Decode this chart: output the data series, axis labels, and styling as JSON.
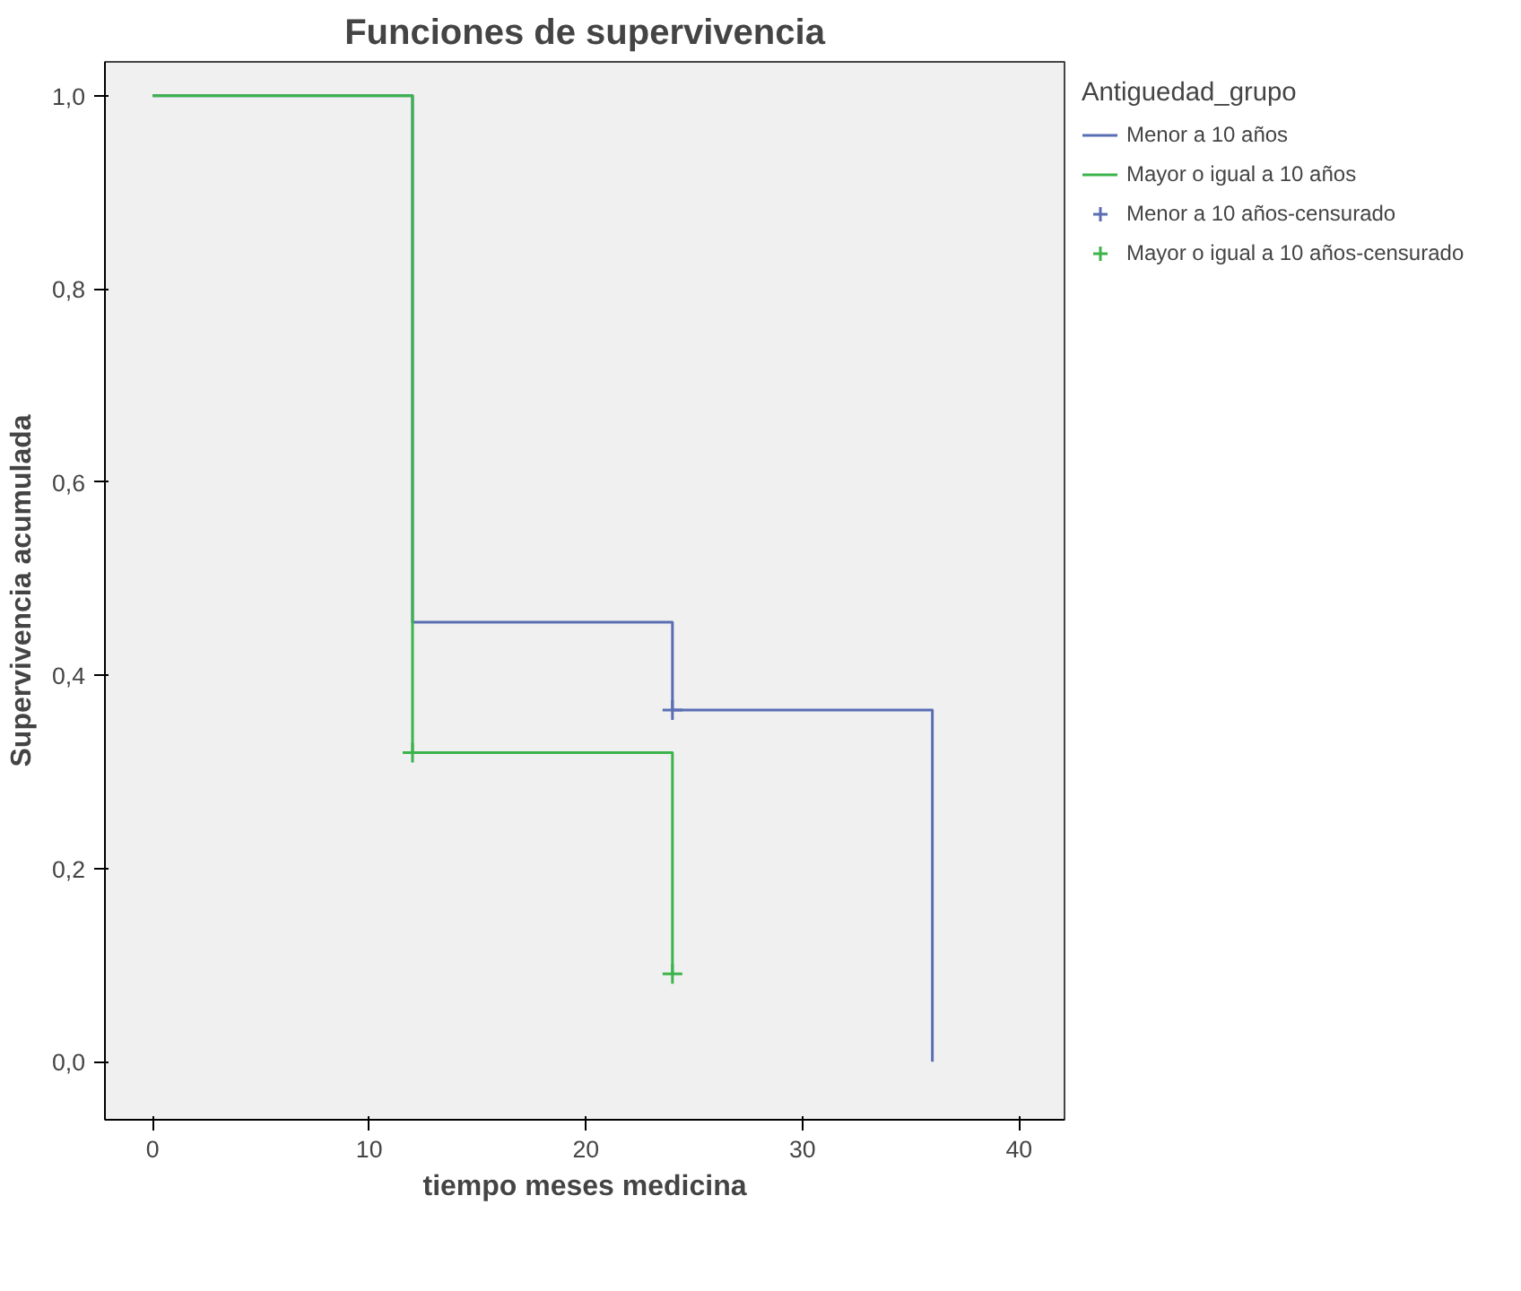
{
  "chart_data": {
    "type": "step",
    "title": "Funciones de supervivencia",
    "xlabel": "tiempo meses medicina",
    "ylabel": "Supervivencia acumulada",
    "legend_title": "Antiguedad_grupo",
    "legend": "right",
    "grid": false,
    "xlim": [
      -2.2,
      42.1
    ],
    "xticks": [
      0,
      10,
      20,
      30,
      40
    ],
    "ylim": [
      -0.06,
      1.035
    ],
    "yticks": [
      {
        "value": 0,
        "label": "0,0"
      },
      {
        "value": 0.2,
        "label": "0,2"
      },
      {
        "value": 0.4,
        "label": "0,4"
      },
      {
        "value": 0.6,
        "label": "0,6"
      },
      {
        "value": 0.8,
        "label": "0,8"
      },
      {
        "value": 1,
        "label": "1,0"
      }
    ],
    "series": [
      {
        "name": "Menor a 10 años",
        "color": "#5a6eb4",
        "x": [
          0,
          12,
          24,
          36
        ],
        "values": [
          1,
          0.455,
          0.364,
          0
        ]
      },
      {
        "name": "Mayor o igual a 10 años",
        "color": "#3cb44b",
        "x": [
          0,
          12,
          24
        ],
        "values": [
          1,
          0.32,
          0.091
        ]
      },
      {
        "name": "Menor a 10 años-censurado",
        "type": "scatter",
        "marker": "cross",
        "color": "#5a6eb4",
        "x": [
          24
        ],
        "values": [
          0.364
        ]
      },
      {
        "name": "Mayor o igual a 10 años-censurado",
        "type": "scatter",
        "marker": "cross",
        "color": "#3cb44b",
        "x": [
          12,
          24
        ],
        "values": [
          0.32,
          0.091
        ]
      }
    ]
  }
}
